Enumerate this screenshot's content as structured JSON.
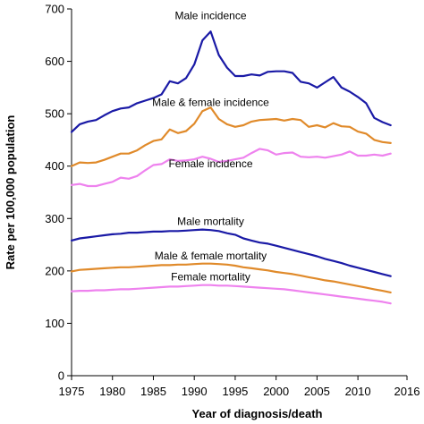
{
  "chart_data": {
    "type": "line",
    "xlabel": "Year of diagnosis/death",
    "ylabel": "Rate per 100,000 population",
    "xlim": [
      1975,
      2016
    ],
    "ylim": [
      0,
      700
    ],
    "xticks": [
      1975,
      1980,
      1985,
      1990,
      1995,
      2000,
      2005,
      2010,
      2016
    ],
    "yticks": [
      0,
      100,
      200,
      300,
      400,
      500,
      600,
      700
    ],
    "grid": false,
    "legend": "none",
    "x": [
      1975,
      1976,
      1977,
      1978,
      1979,
      1980,
      1981,
      1982,
      1983,
      1984,
      1985,
      1986,
      1987,
      1988,
      1989,
      1990,
      1991,
      1992,
      1993,
      1994,
      1995,
      1996,
      1997,
      1998,
      1999,
      2000,
      2001,
      2002,
      2003,
      2004,
      2005,
      2006,
      2007,
      2008,
      2009,
      2010,
      2011,
      2012,
      2013,
      2014
    ],
    "series": [
      {
        "name": "Male incidence",
        "color": "#1a1aa6",
        "label_at": [
          1992,
          680
        ],
        "values": [
          465,
          480,
          485,
          488,
          497,
          505,
          510,
          512,
          520,
          525,
          530,
          537,
          562,
          558,
          568,
          594,
          640,
          657,
          612,
          588,
          572,
          572,
          575,
          573,
          580,
          581,
          581,
          578,
          561,
          558,
          550,
          560,
          570,
          550,
          542,
          532,
          520,
          492,
          484,
          478
        ]
      },
      {
        "name": "Male & female incidence",
        "color": "#e08a2a",
        "label_at": [
          1992,
          515
        ],
        "values": [
          400,
          407,
          406,
          407,
          412,
          418,
          424,
          424,
          430,
          440,
          448,
          451,
          470,
          463,
          467,
          481,
          505,
          512,
          490,
          480,
          475,
          478,
          485,
          488,
          489,
          490,
          487,
          490,
          488,
          475,
          478,
          474,
          482,
          476,
          475,
          466,
          462,
          450,
          446,
          444
        ]
      },
      {
        "name": "Female incidence",
        "color": "#ee82ee",
        "label_at": [
          1992,
          398
        ],
        "values": [
          364,
          366,
          362,
          362,
          366,
          370,
          378,
          376,
          381,
          392,
          402,
          404,
          413,
          410,
          411,
          413,
          418,
          414,
          408,
          410,
          413,
          416,
          425,
          433,
          430,
          422,
          425,
          426,
          418,
          417,
          418,
          416,
          419,
          422,
          428,
          420,
          420,
          422,
          420,
          424
        ]
      },
      {
        "name": "Male mortality",
        "color": "#1a1aa6",
        "label_at": [
          1992,
          288
        ],
        "values": [
          258,
          262,
          264,
          266,
          268,
          270,
          271,
          273,
          273,
          274,
          275,
          275,
          276,
          276,
          277,
          278,
          279,
          278,
          276,
          272,
          269,
          262,
          258,
          254,
          252,
          248,
          244,
          240,
          236,
          232,
          228,
          223,
          219,
          215,
          210,
          206,
          202,
          198,
          194,
          190
        ]
      },
      {
        "name": "Male & female mortality",
        "color": "#e08a2a",
        "label_at": [
          1992,
          222
        ],
        "values": [
          199,
          202,
          203,
          204,
          205,
          206,
          207,
          207,
          208,
          209,
          210,
          211,
          211,
          212,
          212,
          213,
          214,
          214,
          213,
          212,
          210,
          207,
          205,
          203,
          201,
          198,
          196,
          194,
          191,
          188,
          185,
          182,
          180,
          177,
          174,
          171,
          168,
          165,
          162,
          159
        ]
      },
      {
        "name": "Female mortality",
        "color": "#ee82ee",
        "label_at": [
          1992,
          182
        ],
        "values": [
          161,
          162,
          162,
          163,
          163,
          164,
          165,
          165,
          166,
          167,
          168,
          169,
          170,
          170,
          171,
          172,
          173,
          173,
          172,
          172,
          171,
          170,
          169,
          168,
          167,
          166,
          165,
          163,
          161,
          159,
          157,
          155,
          153,
          151,
          149,
          147,
          145,
          143,
          141,
          138
        ]
      }
    ]
  }
}
